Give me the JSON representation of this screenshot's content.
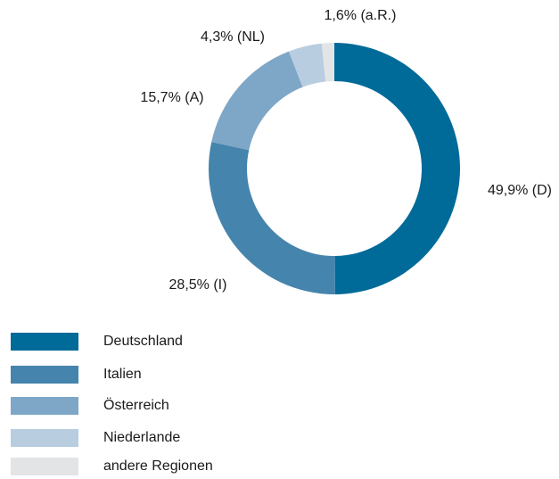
{
  "chart_data": {
    "type": "donut",
    "categories": [
      "Deutschland",
      "Italien",
      "Österreich",
      "Niederlande",
      "andere Regionen"
    ],
    "values": [
      49.9,
      28.5,
      15.7,
      4.3,
      1.6
    ],
    "value_labels": [
      "49,9% (D)",
      "28,5% (I)",
      "15,7% (A)",
      "4,3% (NL)",
      "1,6% (a.R.)"
    ],
    "colors": [
      "#006a99",
      "#4584ad",
      "#7ea6c6",
      "#b9cde0",
      "#e3e4e6"
    ],
    "legend": "bottom-left"
  }
}
